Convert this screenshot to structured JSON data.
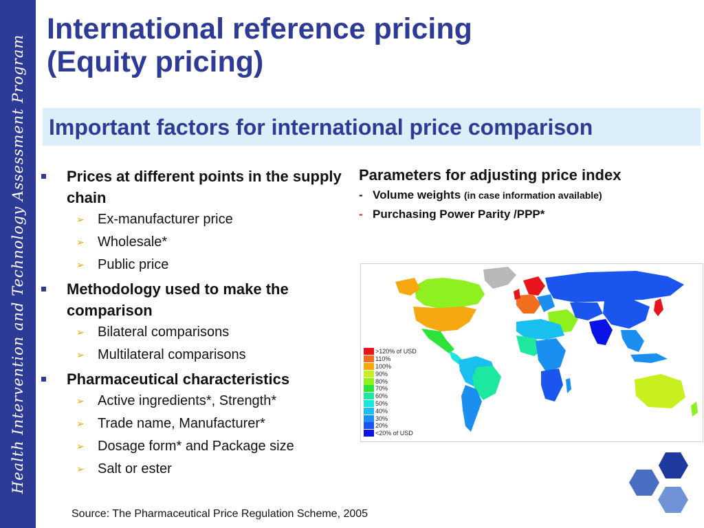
{
  "sidebar": {
    "text": "Health Intervention and Technology Assessment Program"
  },
  "title": {
    "line1": "International reference pricing",
    "line2": "(Equity pricing)"
  },
  "subtitle": "Important factors for international price comparison",
  "left_list": [
    {
      "label": "Prices at different points in the supply chain",
      "subitems": [
        "Ex-manufacturer price",
        "Wholesale*",
        "Public price"
      ]
    },
    {
      "label": "Methodology used to make the comparison",
      "subitems": [
        "Bilateral comparisons",
        "Multilateral comparisons"
      ]
    },
    {
      "label": "Pharmaceutical characteristics",
      "subitems": [
        "Active ingredients*, Strength*",
        "Trade name, Manufacturer*",
        "Dosage form* and Package size",
        "Salt or ester"
      ]
    }
  ],
  "params": {
    "title": "Parameters for adjusting price index",
    "items": [
      {
        "dash": "-",
        "label": "Volume weights",
        "note": "(in case information available)"
      },
      {
        "dash": "-",
        "label": "Purchasing Power Parity /PPP*"
      }
    ]
  },
  "map_legend": [
    {
      "label": ">120% of USD",
      "color": "#e8141c"
    },
    {
      "label": "110%",
      "color": "#f26d1e"
    },
    {
      "label": "100%",
      "color": "#f7a70f"
    },
    {
      "label": "90%",
      "color": "#c8f01e"
    },
    {
      "label": "80%",
      "color": "#8ef01e"
    },
    {
      "label": "70%",
      "color": "#2de33a"
    },
    {
      "label": "60%",
      "color": "#1ee8a0"
    },
    {
      "label": "50%",
      "color": "#19e6df"
    },
    {
      "label": "40%",
      "color": "#19bfee"
    },
    {
      "label": "30%",
      "color": "#1a8ff0"
    },
    {
      "label": "20%",
      "color": "#1a55ee"
    },
    {
      "label": "<20% of USD",
      "color": "#0a12e6"
    }
  ],
  "source": "Source: The Pharmaceutical Price Regulation Scheme, 2005"
}
